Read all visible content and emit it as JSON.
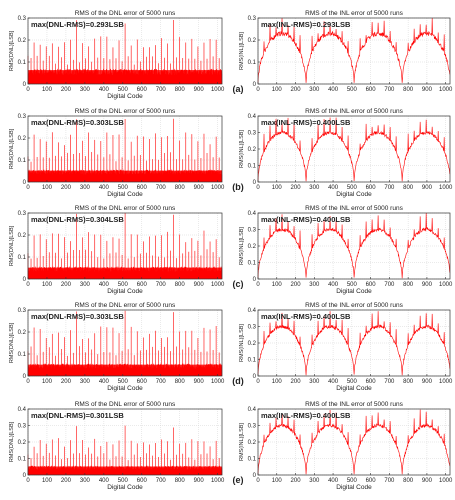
{
  "chart_data": [
    {
      "row": "a",
      "side": "dnl",
      "type": "line",
      "title": "RMS of the DNL error of 5000 runs",
      "xlabel": "Digital Code",
      "ylabel": "RMS(DNL)[LSB]",
      "xlim": [
        0,
        1023
      ],
      "ylim": [
        0,
        0.3
      ],
      "yticks": [
        0,
        0.1,
        0.2,
        0.3
      ],
      "xticks": [
        0,
        100,
        200,
        300,
        400,
        500,
        600,
        700,
        800,
        900,
        1000
      ],
      "grid": true,
      "annotation": "max(DNL-RMS)=0.293LSB",
      "baseline": 0.055,
      "peak_max": 0.293,
      "series_color": "#ff0000"
    },
    {
      "row": "a",
      "side": "inl",
      "type": "line",
      "title": "RMS of the INL error of 5000 runs",
      "xlabel": "",
      "ylabel": "RMS(INL)[LSB]",
      "xlim": [
        0,
        1023
      ],
      "ylim": [
        0,
        0.3
      ],
      "yticks": [
        0,
        0.1,
        0.2,
        0.3
      ],
      "xticks": [
        0,
        100,
        200,
        300,
        400,
        500,
        600,
        700,
        800,
        900,
        1000
      ],
      "grid": true,
      "annotation": "max(INL-RMS)=0.293LSB",
      "arch_peak": 0.23,
      "arch_count": 4,
      "peak_max": 0.293,
      "series_color": "#ff0000"
    },
    {
      "row": "b",
      "side": "dnl",
      "type": "line",
      "title": "RMS of the DNL error of 5000 runs",
      "xlabel": "Digital Code",
      "ylabel": "RMS(DNL)[LSB]",
      "xlim": [
        0,
        1023
      ],
      "ylim": [
        0,
        0.3
      ],
      "yticks": [
        0,
        0.1,
        0.2,
        0.3
      ],
      "xticks": [
        0,
        100,
        200,
        300,
        400,
        500,
        600,
        700,
        800,
        900,
        1000
      ],
      "grid": true,
      "annotation": "max(DNL-RMS)=0.303LSB",
      "baseline": 0.045,
      "peak_max": 0.303,
      "series_color": "#ff0000"
    },
    {
      "row": "b",
      "side": "inl",
      "type": "line",
      "title": "RMS of the INL error of 5000 runs",
      "xlabel": "Digital Code",
      "ylabel": "RMS(INL)[LSB]",
      "xlim": [
        0,
        1023
      ],
      "ylim": [
        0,
        0.4
      ],
      "yticks": [
        0,
        0.1,
        0.2,
        0.3,
        0.4
      ],
      "xticks": [
        0,
        100,
        200,
        300,
        400,
        500,
        600,
        700,
        800,
        900,
        1000
      ],
      "grid": true,
      "annotation": "max(INL-RMS)=0.400LSB",
      "arch_peak": 0.3,
      "arch_count": 4,
      "peak_max": 0.4,
      "series_color": "#ff0000"
    },
    {
      "row": "c",
      "side": "dnl",
      "type": "line",
      "title": "RMS of the DNL error of 5000 runs",
      "xlabel": "Digital Code",
      "ylabel": "RMS(DNL)[LSB]",
      "xlim": [
        0,
        1023
      ],
      "ylim": [
        0,
        0.3
      ],
      "yticks": [
        0,
        0.1,
        0.2,
        0.3
      ],
      "xticks": [
        0,
        100,
        200,
        300,
        400,
        500,
        600,
        700,
        800,
        900,
        1000
      ],
      "grid": true,
      "annotation": "max(DNL-RMS)=0.304LSB",
      "baseline": 0.045,
      "peak_max": 0.304,
      "series_color": "#ff0000"
    },
    {
      "row": "c",
      "side": "inl",
      "type": "line",
      "title": "RMS of the INL error of 5000 runs",
      "xlabel": "Digital Code",
      "ylabel": "RMS(INL)[LSB]",
      "xlim": [
        0,
        1023
      ],
      "ylim": [
        0,
        0.4
      ],
      "yticks": [
        0,
        0.1,
        0.2,
        0.3,
        0.4
      ],
      "xticks": [
        0,
        100,
        200,
        300,
        400,
        500,
        600,
        700,
        800,
        900,
        1000
      ],
      "grid": true,
      "annotation": "max(INL-RMS)=0.400LSB",
      "arch_peak": 0.3,
      "arch_count": 4,
      "peak_max": 0.4,
      "series_color": "#ff0000"
    },
    {
      "row": "d",
      "side": "dnl",
      "type": "line",
      "title": "RMS of the DNL error of 5000 runs",
      "xlabel": "Digital Code",
      "ylabel": "RMS(DNL)[LSB]",
      "xlim": [
        0,
        1023
      ],
      "ylim": [
        0,
        0.3
      ],
      "yticks": [
        0,
        0.1,
        0.2,
        0.3
      ],
      "xticks": [
        0,
        100,
        200,
        300,
        400,
        500,
        600,
        700,
        800,
        900,
        1000
      ],
      "grid": true,
      "annotation": "max(DNL-RMS)=0.303LSB",
      "baseline": 0.045,
      "peak_max": 0.303,
      "series_color": "#ff0000"
    },
    {
      "row": "d",
      "side": "inl",
      "type": "line",
      "title": "RMS of the INL error of 5000 runs",
      "xlabel": "Digital Code",
      "ylabel": "RMS(INL)[LSB]",
      "xlim": [
        0,
        1023
      ],
      "ylim": [
        0,
        0.4
      ],
      "yticks": [
        0,
        0.1,
        0.2,
        0.3,
        0.4
      ],
      "xticks": [
        0,
        100,
        200,
        300,
        400,
        500,
        600,
        700,
        800,
        900,
        1000
      ],
      "grid": true,
      "annotation": "max(INL-RMS)=0.400LSB",
      "arch_peak": 0.3,
      "arch_count": 4,
      "peak_max": 0.4,
      "series_color": "#ff0000"
    },
    {
      "row": "e",
      "side": "dnl",
      "type": "line",
      "title": "RMS of the DNL error of 5000 runs",
      "xlabel": "Digital Code",
      "ylabel": "RMS(DNL)[LSB]",
      "xlim": [
        0,
        1023
      ],
      "ylim": [
        0,
        0.4
      ],
      "yticks": [
        0,
        0.1,
        0.2,
        0.3,
        0.4
      ],
      "xticks": [
        0,
        100,
        200,
        300,
        400,
        500,
        600,
        700,
        800,
        900,
        1000
      ],
      "grid": true,
      "annotation": "max(DNL-RMS)=0.301LSB",
      "baseline": 0.045,
      "peak_max": 0.301,
      "series_color": "#ff0000"
    },
    {
      "row": "e",
      "side": "inl",
      "type": "line",
      "title": "RMS of the INL error of 5000 runs",
      "xlabel": "Digital Code",
      "ylabel": "RMS(INL)[LSB]",
      "xlim": [
        0,
        1023
      ],
      "ylim": [
        0,
        0.4
      ],
      "yticks": [
        0,
        0.1,
        0.2,
        0.3,
        0.4
      ],
      "xticks": [
        0,
        100,
        200,
        300,
        400,
        500,
        600,
        700,
        800,
        900,
        1000
      ],
      "grid": true,
      "annotation": "max(INL-RMS)=0.400LSB",
      "arch_peak": 0.3,
      "arch_count": 4,
      "peak_max": 0.4,
      "series_color": "#ff0000"
    }
  ],
  "row_labels": [
    "(a)",
    "(b)",
    "(c)",
    "(d)",
    "(e)"
  ],
  "colors": {
    "series": "#ff0000",
    "axis": "#333333",
    "grid": "#d4d4d4",
    "text": "#222222"
  }
}
